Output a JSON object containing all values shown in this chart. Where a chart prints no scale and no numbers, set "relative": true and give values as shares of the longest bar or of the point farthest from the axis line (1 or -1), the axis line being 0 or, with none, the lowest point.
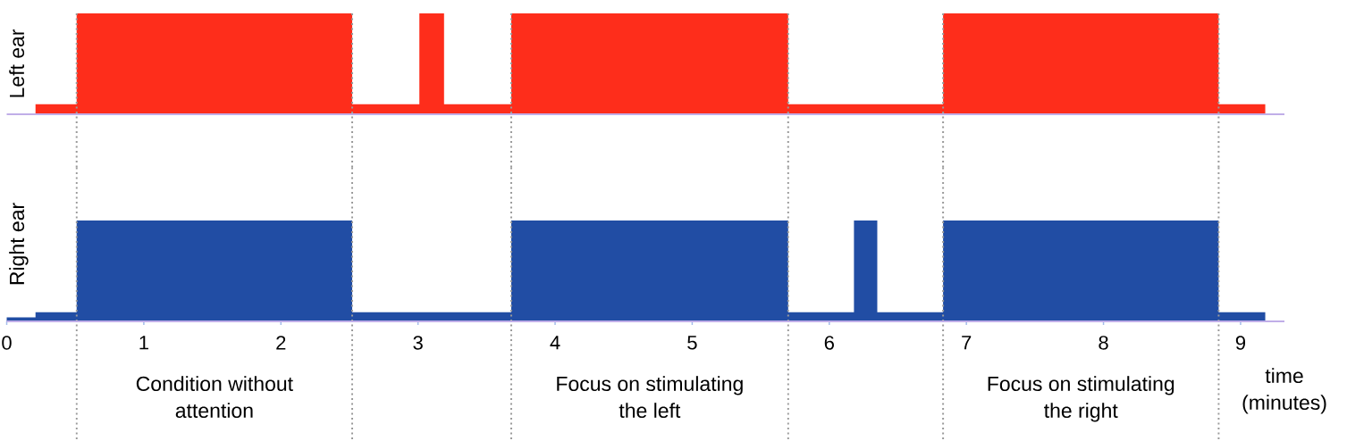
{
  "chart_data": [
    {
      "type": "area",
      "ylabel": "Left ear",
      "relative": true,
      "color": "#fe2d1b",
      "xlim": [
        0,
        9.32
      ],
      "tick_labels": false,
      "x": [
        0.21,
        0.51,
        0.51,
        2.52,
        2.52,
        3.01,
        3.01,
        3.19,
        3.19,
        3.68,
        3.68,
        5.7,
        5.7,
        6.83,
        6.83,
        8.84,
        8.84,
        9.18
      ],
      "values": [
        0.1,
        0.1,
        1,
        1,
        0.1,
        0.1,
        1,
        1,
        0.1,
        0.1,
        1,
        1,
        0.1,
        0.1,
        1,
        1,
        0.1,
        0.1
      ],
      "ref_lines": [
        {
          "axis": "x",
          "value": 0.51,
          "line_style": "dotted",
          "color": "#9a9a9a"
        },
        {
          "axis": "x",
          "value": 2.52,
          "line_style": "dotted",
          "color": "#9a9a9a"
        },
        {
          "axis": "x",
          "value": 3.68,
          "line_style": "dotted",
          "color": "#9a9a9a"
        },
        {
          "axis": "x",
          "value": 5.7,
          "line_style": "dotted",
          "color": "#9a9a9a"
        },
        {
          "axis": "x",
          "value": 6.83,
          "line_style": "dotted",
          "color": "#9a9a9a"
        },
        {
          "axis": "x",
          "value": 8.84,
          "line_style": "dotted",
          "color": "#9a9a9a"
        }
      ]
    },
    {
      "type": "area",
      "ylabel": "Right ear",
      "xlabel": "time (minutes)",
      "relative": true,
      "color": "#214da4",
      "xlim": [
        0,
        9.32
      ],
      "xticks": [
        0,
        1,
        2,
        3,
        4,
        5,
        6,
        7,
        8,
        9
      ],
      "tick_labels": "x",
      "x": [
        0,
        0.21,
        0.21,
        0.51,
        0.51,
        2.52,
        2.52,
        3.68,
        3.68,
        5.7,
        5.7,
        6.18,
        6.18,
        6.35,
        6.35,
        6.83,
        6.83,
        8.84,
        8.84,
        9.18
      ],
      "values": [
        0.04,
        0.04,
        0.09,
        0.09,
        1,
        1,
        0.09,
        0.09,
        1,
        1,
        0.09,
        0.09,
        1,
        1,
        0.09,
        0.09,
        1,
        1,
        0.09,
        0.09
      ],
      "ref_lines": [
        {
          "axis": "x",
          "value": 0.51,
          "line_style": "dotted",
          "color": "#9a9a9a"
        },
        {
          "axis": "x",
          "value": 2.52,
          "line_style": "dotted",
          "color": "#9a9a9a"
        },
        {
          "axis": "x",
          "value": 3.68,
          "line_style": "dotted",
          "color": "#9a9a9a"
        },
        {
          "axis": "x",
          "value": 5.7,
          "line_style": "dotted",
          "color": "#9a9a9a"
        },
        {
          "axis": "x",
          "value": 6.83,
          "line_style": "dotted",
          "color": "#9a9a9a"
        },
        {
          "axis": "x",
          "value": 8.84,
          "line_style": "dotted",
          "color": "#9a9a9a"
        }
      ],
      "annotations": [
        "Condition without attention",
        "Focus on stimulating the left",
        "Focus on stimulating the right"
      ]
    }
  ]
}
